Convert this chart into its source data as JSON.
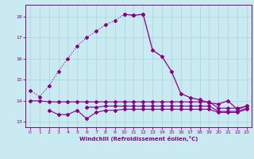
{
  "xlabel": "Windchill (Refroidissement éolien,°C)",
  "bg_color": "#c8eaf0",
  "grid_color": "#b0d8e0",
  "line_color": "#880088",
  "ylim": [
    12.75,
    18.55
  ],
  "xlim": [
    -0.5,
    23.5
  ],
  "yticks": [
    13,
    14,
    15,
    16,
    17,
    18
  ],
  "xticks": [
    0,
    1,
    2,
    3,
    4,
    5,
    6,
    7,
    8,
    9,
    10,
    11,
    12,
    13,
    14,
    15,
    16,
    17,
    18,
    19,
    20,
    21,
    22,
    23
  ],
  "series1_dotted": {
    "x": [
      0,
      1,
      2,
      3,
      4,
      5,
      6,
      7,
      8,
      9,
      10,
      11,
      12
    ],
    "y": [
      14.5,
      14.2,
      14.7,
      15.4,
      16.0,
      16.6,
      17.0,
      17.3,
      17.6,
      17.8,
      18.1,
      18.05,
      18.1
    ]
  },
  "series1_solid": {
    "x": [
      10,
      11,
      12,
      13,
      14,
      15,
      16,
      17,
      18,
      19,
      20,
      21,
      22,
      23
    ],
    "y": [
      18.1,
      18.05,
      18.1,
      16.4,
      16.1,
      15.4,
      14.35,
      14.15,
      14.05,
      13.9,
      13.85,
      14.0,
      13.6,
      13.75
    ]
  },
  "series2": {
    "x": [
      0,
      1,
      2,
      3,
      4,
      5,
      6,
      7,
      8,
      9,
      10,
      11,
      12,
      13,
      14,
      15,
      16,
      17,
      18,
      19,
      20,
      21,
      22,
      23
    ],
    "y": [
      14.0,
      14.0,
      13.95,
      13.95,
      13.95,
      13.95,
      13.95,
      13.95,
      13.95,
      13.95,
      13.95,
      13.95,
      13.95,
      13.95,
      13.95,
      13.95,
      13.95,
      13.95,
      13.95,
      13.95,
      13.65,
      13.65,
      13.65,
      13.75
    ]
  },
  "series3": {
    "x": [
      2,
      3,
      4,
      5,
      6,
      7,
      8,
      9,
      10,
      11,
      12,
      13,
      14,
      15,
      16,
      17,
      18,
      19,
      20,
      21,
      22,
      23
    ],
    "y": [
      13.55,
      13.35,
      13.35,
      13.55,
      13.15,
      13.45,
      13.55,
      13.55,
      13.6,
      13.6,
      13.6,
      13.6,
      13.6,
      13.6,
      13.6,
      13.6,
      13.6,
      13.6,
      13.45,
      13.45,
      13.45,
      13.6
    ]
  },
  "series4": {
    "x": [
      6,
      7,
      8,
      9,
      10,
      11,
      12,
      13,
      14,
      15,
      16,
      17,
      18,
      19,
      20,
      21,
      22,
      23
    ],
    "y": [
      13.7,
      13.7,
      13.75,
      13.75,
      13.75,
      13.75,
      13.75,
      13.75,
      13.75,
      13.75,
      13.75,
      13.75,
      13.75,
      13.75,
      13.5,
      13.5,
      13.5,
      13.65
    ]
  }
}
